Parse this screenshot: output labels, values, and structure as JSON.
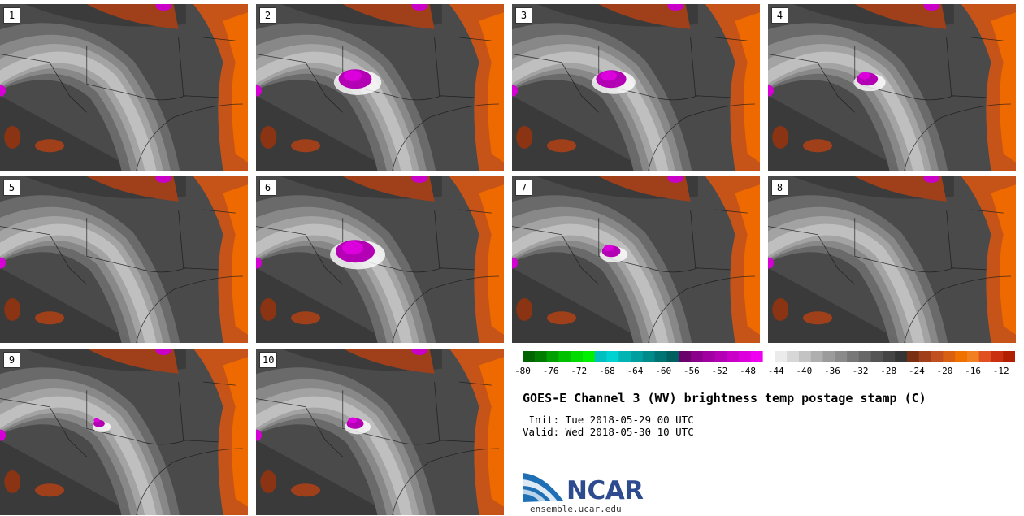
{
  "chart_data": {
    "type": "postage-stamp",
    "title": "GOES-E Channel 3 (WV) brightness temp postage stamp (C)",
    "init_label": " Init: Tue 2018-05-29 00 UTC",
    "valid_label": "Valid: Wed 2018-05-30 10 UTC",
    "units": "C",
    "panels": [
      {
        "label": "1",
        "cold_blob": 0.0
      },
      {
        "label": "2",
        "cold_blob": 0.8
      },
      {
        "label": "3",
        "cold_blob": 0.7
      },
      {
        "label": "4",
        "cold_blob": 0.4
      },
      {
        "label": "5",
        "cold_blob": 0.0
      },
      {
        "label": "6",
        "cold_blob": 1.0
      },
      {
        "label": "7",
        "cold_blob": 0.3
      },
      {
        "label": "8",
        "cold_blob": 0.0
      },
      {
        "label": "9",
        "cold_blob": 0.05
      },
      {
        "label": "10",
        "cold_blob": 0.25
      }
    ],
    "colorbar": {
      "min": -80,
      "max": -10,
      "step": 2,
      "tick_labels": [
        "-80",
        "-76",
        "-72",
        "-68",
        "-64",
        "-60",
        "-56",
        "-52",
        "-48",
        "-44",
        "-40",
        "-36",
        "-32",
        "-28",
        "-24",
        "-20",
        "-16",
        "-12"
      ],
      "colors": [
        "#006400",
        "#007d00",
        "#00a000",
        "#00c000",
        "#00dc00",
        "#00f000",
        "#00bfbf",
        "#00d2d2",
        "#00b4b4",
        "#009f9f",
        "#008b8b",
        "#007373",
        "#006060",
        "#6a006a",
        "#8b008b",
        "#a000a0",
        "#b400b4",
        "#c800c8",
        "#dc00dc",
        "#f000f0",
        "#ffffff",
        "#ebebeb",
        "#d7d7d7",
        "#c3c3c3",
        "#afafaf",
        "#9b9b9b",
        "#8a8a8a",
        "#787878",
        "#676767",
        "#555555",
        "#454545",
        "#353535",
        "#7a3010",
        "#a0401a",
        "#c05020",
        "#d86010",
        "#f07000",
        "#f08020",
        "#e05020",
        "#c83010",
        "#b02000"
      ]
    }
  },
  "branding": {
    "logo_text": "NCAR",
    "site": "ensemble.ucar.edu"
  }
}
